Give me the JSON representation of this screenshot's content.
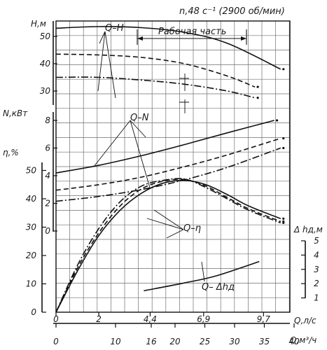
{
  "chart_data": {
    "type": "line",
    "title": "n,48 с⁻¹ (2900 об/мин)",
    "work_range_label": "Рабочая часть",
    "x_primary": {
      "label": "Q,л/с",
      "ticks": [
        "0",
        "2",
        "4,4",
        "6,9",
        "9,7"
      ],
      "values": [
        0,
        2,
        4.4,
        6.9,
        9.7
      ]
    },
    "x_secondary": {
      "label": "Q,м³/ч",
      "ticks": [
        "0",
        "10",
        "16",
        "20",
        "25",
        "30",
        "35",
        "40"
      ],
      "values": [
        0,
        10,
        16,
        20,
        25,
        30,
        35,
        40
      ]
    },
    "axes": {
      "head": {
        "label": "H,м",
        "ticks": [
          "50",
          "40",
          "30"
        ],
        "values": [
          50,
          40,
          30
        ]
      },
      "power": {
        "label": "N,кВт",
        "ticks": [
          "8",
          "6",
          "4",
          "2",
          "0"
        ],
        "values": [
          8,
          6,
          4,
          2,
          0
        ]
      },
      "efficiency": {
        "label": "η,%",
        "ticks": [
          "50",
          "40",
          "30",
          "20",
          "10",
          "0"
        ],
        "values": [
          50,
          40,
          30,
          20,
          10,
          0
        ]
      },
      "npsh": {
        "label": "Δ hд,м",
        "ticks": [
          "5",
          "4",
          "3",
          "2",
          "1"
        ],
        "values": [
          5,
          4,
          3,
          2,
          1
        ]
      }
    },
    "annotations": {
      "qh": "Q–H",
      "qn": "Q–N",
      "qeta": "Q–η",
      "qdh": "Q– Δhд"
    },
    "series": [
      {
        "group": "Q-H",
        "style": "solid",
        "points": [
          [
            0,
            53
          ],
          [
            2,
            53.6
          ],
          [
            4,
            53.2
          ],
          [
            6,
            51.5
          ],
          [
            8,
            47.5
          ],
          [
            10.5,
            38
          ]
        ]
      },
      {
        "group": "Q-H",
        "style": "dashed",
        "points": [
          [
            0,
            43.5
          ],
          [
            2,
            43.2
          ],
          [
            4,
            42.3
          ],
          [
            6,
            40
          ],
          [
            8,
            35.5
          ],
          [
            9.3,
            31.5
          ]
        ]
      },
      {
        "group": "Q-H",
        "style": "dashdot",
        "points": [
          [
            0,
            35
          ],
          [
            2,
            35
          ],
          [
            4,
            34
          ],
          [
            6,
            32.5
          ],
          [
            8,
            30
          ],
          [
            9.3,
            27.5
          ]
        ]
      },
      {
        "group": "Q-N",
        "style": "solid",
        "points": [
          [
            0,
            4.2
          ],
          [
            2,
            4.75
          ],
          [
            4,
            5.45
          ],
          [
            6,
            6.25
          ],
          [
            8,
            7.1
          ],
          [
            10.2,
            8
          ]
        ]
      },
      {
        "group": "Q-N",
        "style": "dashed",
        "points": [
          [
            0,
            2.95
          ],
          [
            2,
            3.35
          ],
          [
            4,
            3.9
          ],
          [
            6,
            4.65
          ],
          [
            8,
            5.5
          ],
          [
            10.5,
            6.7
          ]
        ]
      },
      {
        "group": "Q-N",
        "style": "dashdot",
        "points": [
          [
            0,
            2.15
          ],
          [
            2,
            2.5
          ],
          [
            4,
            3
          ],
          [
            6,
            3.7
          ],
          [
            8,
            4.6
          ],
          [
            10.5,
            6
          ]
        ]
      },
      {
        "group": "Q-η",
        "style": "solid",
        "points": [
          [
            0,
            0
          ],
          [
            1,
            14.5
          ],
          [
            2,
            27
          ],
          [
            3,
            36
          ],
          [
            4,
            42
          ],
          [
            5,
            45.5
          ],
          [
            6,
            46.5
          ],
          [
            7,
            45
          ],
          [
            8,
            41.5
          ],
          [
            9,
            37.5
          ],
          [
            10.5,
            33
          ]
        ]
      },
      {
        "group": "Q-η",
        "style": "dashed",
        "points": [
          [
            0,
            0
          ],
          [
            1,
            15.5
          ],
          [
            2,
            28
          ],
          [
            3,
            37.5
          ],
          [
            4,
            43.5
          ],
          [
            5,
            46.2
          ],
          [
            6,
            46.8
          ],
          [
            7,
            44.5
          ],
          [
            8,
            40.5
          ],
          [
            9,
            36.5
          ],
          [
            10.5,
            32
          ]
        ]
      },
      {
        "group": "Q-η",
        "style": "dashdot",
        "points": [
          [
            0,
            0
          ],
          [
            1,
            16.5
          ],
          [
            2,
            29.5
          ],
          [
            3,
            39
          ],
          [
            4,
            44.5
          ],
          [
            5,
            46.5
          ],
          [
            6,
            47
          ],
          [
            7,
            44
          ],
          [
            8,
            40
          ],
          [
            9,
            36
          ],
          [
            10.5,
            31.5
          ]
        ]
      },
      {
        "group": "Q-Δhд",
        "style": "solid",
        "points": [
          [
            4.1,
            1.5
          ],
          [
            6,
            2.05
          ],
          [
            7.5,
            2.55
          ],
          [
            9.5,
            3.55
          ]
        ]
      }
    ],
    "grid": true
  }
}
